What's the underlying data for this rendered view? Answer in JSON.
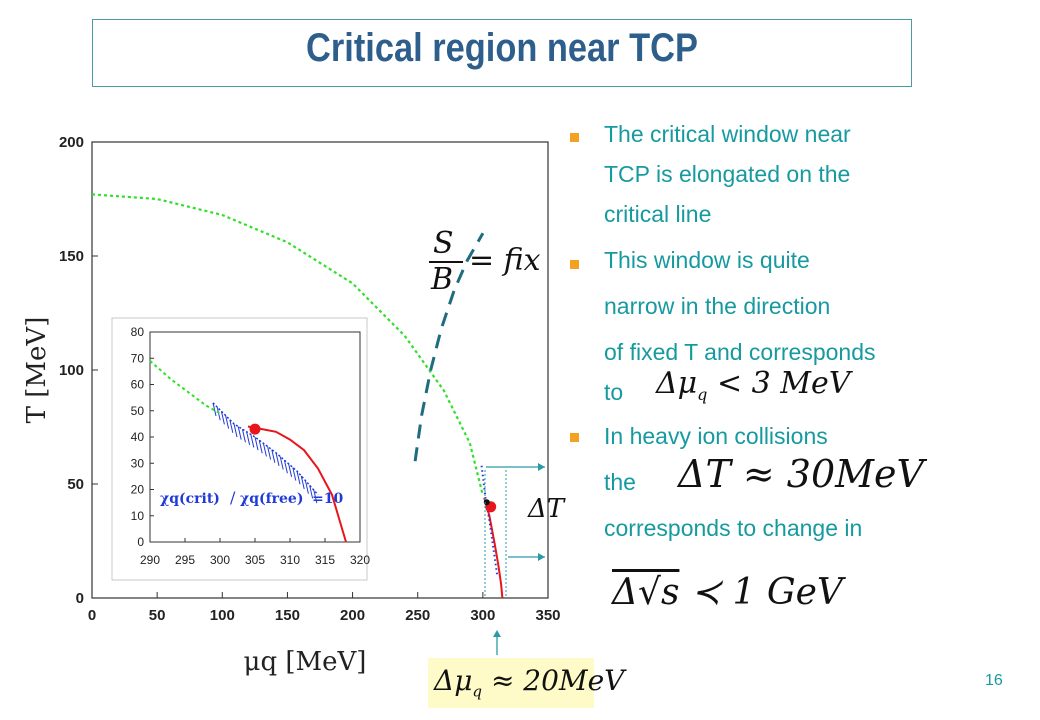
{
  "slide": {
    "title": "Critical region near TCP",
    "page_number": "16"
  },
  "bullets": [
    {
      "text": "The critical window near"
    },
    {
      "text": "TCP is elongated on the"
    },
    {
      "text": "critical line"
    },
    {
      "text": "This window is quite"
    },
    {
      "text": "narrow in the direction"
    },
    {
      "text": "of fixed T and corresponds"
    },
    {
      "text": "to"
    },
    {
      "text": "In heavy ion collisions"
    },
    {
      "text": "the"
    },
    {
      "text": "corresponds to  change in"
    }
  ],
  "equations": {
    "s_over_b_num": "S",
    "s_over_b_den": "B",
    "s_over_b_rhs": "= fix",
    "delta_mu": "Δμ",
    "delta_mu_sub": "q",
    "delta_mu_rhs": "< 3 MeV",
    "delta_t_big": "ΔT ≈ 30MeV",
    "delta_sqrt": "Δ√s",
    "delta_sqrt_rhs": "≺ 1 GeV",
    "delta_t_label": "ΔT",
    "delta_mu_box": "Δμ",
    "delta_mu_box_sub": "q",
    "delta_mu_box_rhs": "≈ 20MeV"
  },
  "chart_data": [
    {
      "type": "line",
      "xlabel": "μq [MeV]",
      "ylabel": "T [MeV]",
      "xlim": [
        0,
        350
      ],
      "ylim": [
        0,
        200
      ],
      "x_ticks": [
        "0",
        "50",
        "100",
        "150",
        "200",
        "250",
        "300",
        "350"
      ],
      "y_ticks": [
        "0",
        "50",
        "100",
        "150",
        "200"
      ],
      "series": [
        {
          "style": "green-dotted",
          "points": [
            [
              0,
              177
            ],
            [
              50,
              175
            ],
            [
              100,
              168
            ],
            [
              150,
              156
            ],
            [
              200,
              138
            ],
            [
              240,
              115
            ],
            [
              270,
              91
            ],
            [
              290,
              68
            ],
            [
              300,
              45
            ]
          ]
        },
        {
          "style": "red-solid",
          "points": [
            [
              301,
              44
            ],
            [
              305,
              36
            ],
            [
              309,
              24
            ],
            [
              312,
              14
            ],
            [
              314,
              6
            ],
            [
              315,
              0
            ]
          ]
        },
        {
          "style": "blue-dotted",
          "points": [
            [
              299,
              58
            ],
            [
              302,
              44
            ],
            [
              305,
              34
            ],
            [
              308,
              22
            ],
            [
              311,
              10
            ]
          ]
        },
        {
          "style": "teal-dashed",
          "points": [
            [
              248,
              60
            ],
            [
              253,
              80
            ],
            [
              260,
              100
            ],
            [
              268,
              118
            ],
            [
              278,
              135
            ],
            [
              288,
              148
            ],
            [
              300,
              160
            ]
          ]
        }
      ],
      "markers": [
        {
          "x": 306,
          "y": 40,
          "color": "#e8151c"
        },
        {
          "x": 303,
          "y": 42,
          "color": "#111111"
        }
      ],
      "colors": {
        "green": "#2fe02a",
        "red": "#e8151c",
        "blue": "#1f3ad6",
        "teal": "#1f6b80"
      }
    },
    {
      "type": "line",
      "xlim": [
        290,
        320
      ],
      "ylim": [
        0,
        80
      ],
      "x_ticks": [
        "290",
        "295",
        "300",
        "305",
        "310",
        "315",
        "320"
      ],
      "y_ticks": [
        "0",
        "10",
        "20",
        "30",
        "40",
        "50",
        "60",
        "70",
        "80"
      ],
      "annotation": {
        "chi_crit": "χq(crit)",
        "slash": "/",
        "chi_free": "χq(free)",
        "rhs": "=10"
      },
      "series": [
        {
          "style": "green-dotted",
          "points": [
            [
              290,
              69
            ],
            [
              293,
              62
            ],
            [
              296,
              56
            ],
            [
              298,
              52
            ],
            [
              300,
              49
            ]
          ]
        },
        {
          "style": "red-solid",
          "points": [
            [
              304,
              44
            ],
            [
              306,
              43
            ],
            [
              308,
              42
            ],
            [
              310,
              39
            ],
            [
              312,
              35
            ],
            [
              314,
              28
            ],
            [
              316,
              18
            ],
            [
              317,
              9
            ],
            [
              318,
              0
            ]
          ]
        },
        {
          "style": "blue-hatch",
          "points": [
            [
              299,
              53
            ],
            [
              302,
              45
            ],
            [
              305,
              40
            ],
            [
              308,
              34
            ],
            [
              311,
              27
            ],
            [
              314,
              18
            ]
          ]
        }
      ],
      "markers": [
        {
          "x": 305,
          "y": 43,
          "color": "#e8151c"
        }
      ],
      "colors": {
        "green": "#2fe02a",
        "red": "#e8151c",
        "blue": "#1f3ad6"
      }
    }
  ]
}
